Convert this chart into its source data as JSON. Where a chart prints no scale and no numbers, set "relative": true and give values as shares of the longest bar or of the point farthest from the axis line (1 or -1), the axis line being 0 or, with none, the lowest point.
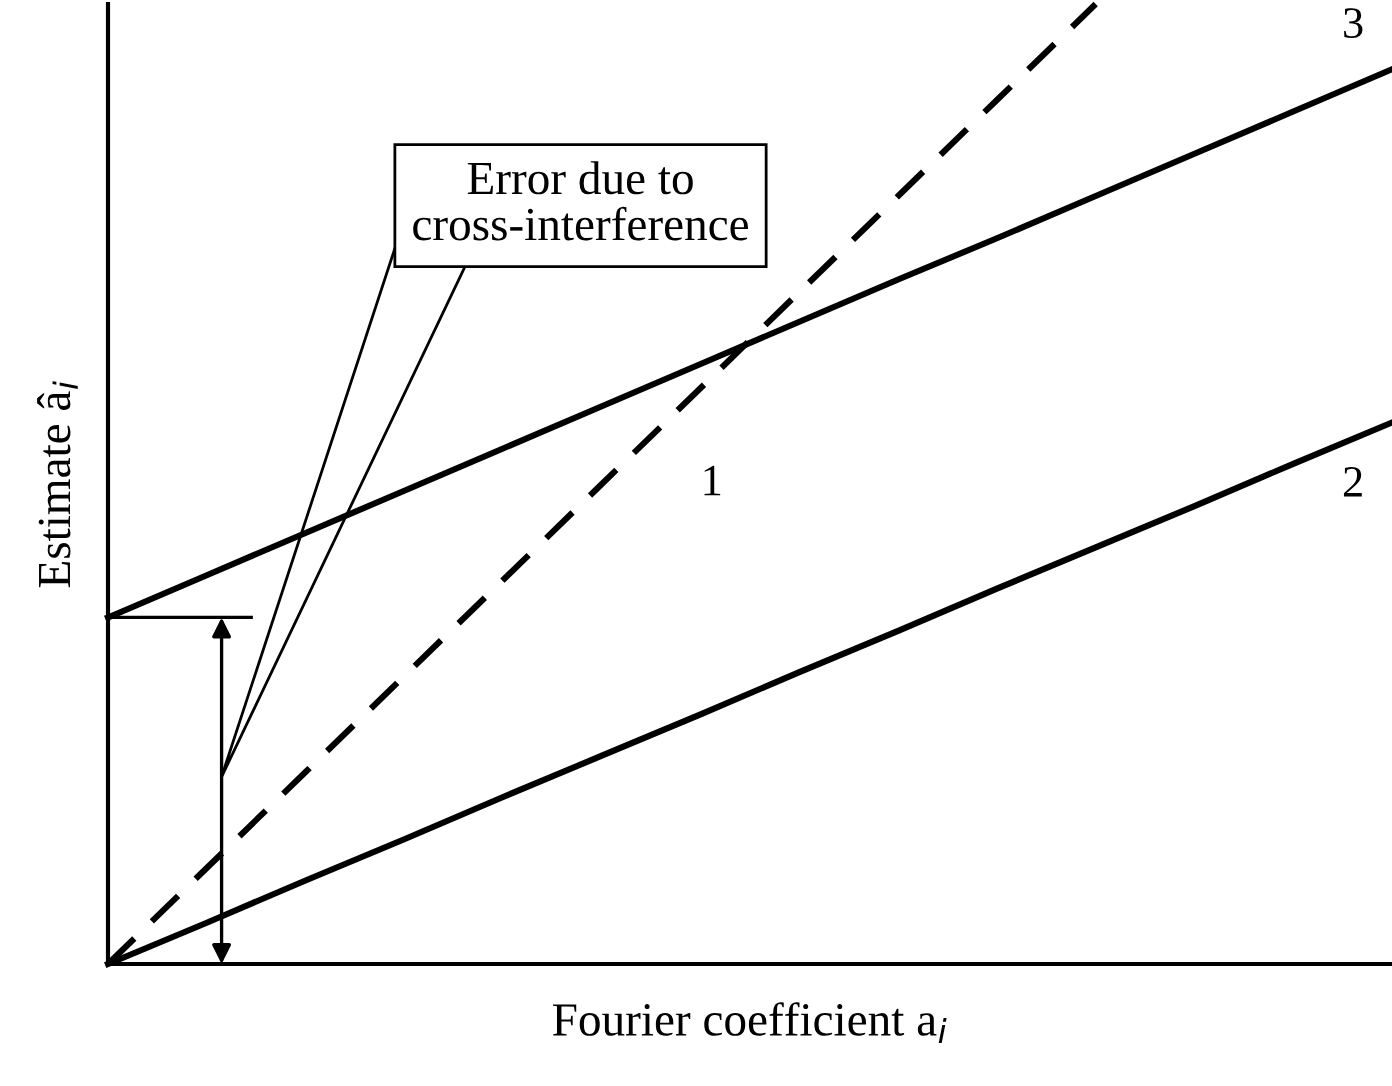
{
  "chart_data": {
    "type": "line",
    "relative": true,
    "xlabel": "Fourier coefficient a$_{i}$",
    "ylabel": "Estimate â$_{i}$",
    "categories": [
      null,
      null,
      null,
      null,
      null,
      null,
      null,
      null,
      null,
      null,
      null,
      null,
      null,
      null
    ],
    "tick_labels": false,
    "annotations": [
      "Error due to\ncross-interference"
    ],
    "series": [
      {
        "name": "1",
        "color": "#000000",
        "line_style": "dashed",
        "values": [
          0,
          0.1,
          0.2,
          0.3,
          0.4,
          0.5,
          0.6,
          0.7,
          0.8,
          0.9,
          1.0,
          null,
          null,
          null
        ]
      },
      {
        "name": "2",
        "color": "#000000",
        "line_style": "solid",
        "values": [
          0,
          0.043,
          0.087,
          0.13,
          0.174,
          0.217,
          0.26,
          0.304,
          0.347,
          0.391,
          0.434,
          0.477,
          0.521,
          0.564
        ]
      },
      {
        "name": "3",
        "color": "#000000",
        "line_style": "solid",
        "values": [
          0.361,
          0.405,
          0.449,
          0.493,
          0.537,
          0.581,
          0.625,
          0.669,
          0.713,
          0.756,
          0.8,
          0.844,
          0.888,
          0.932
        ]
      }
    ]
  }
}
